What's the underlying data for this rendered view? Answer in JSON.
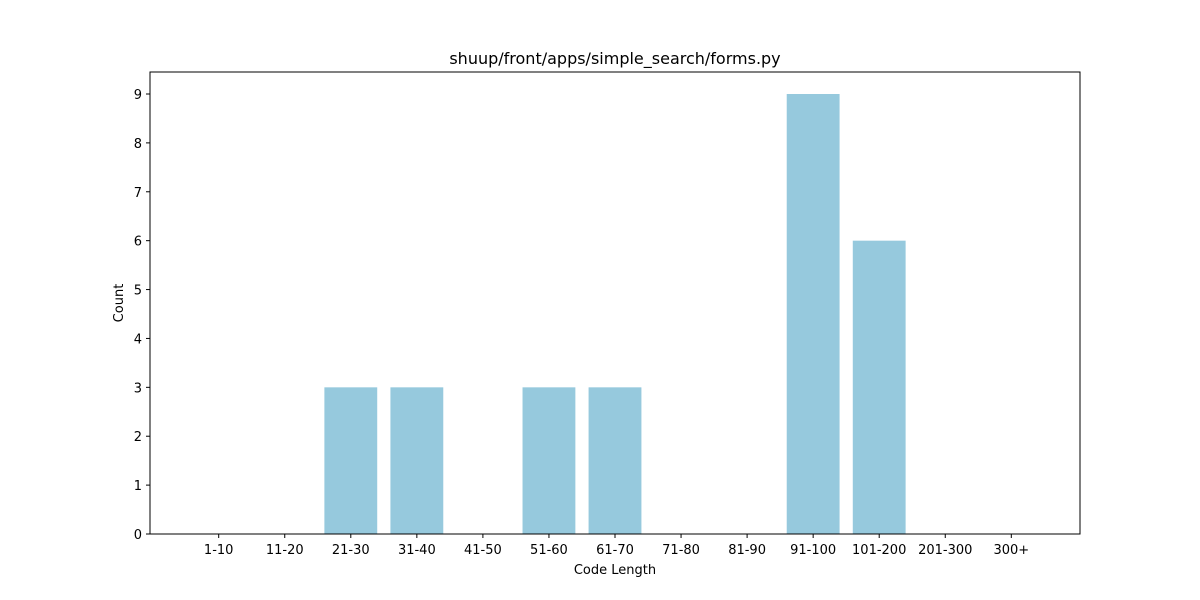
{
  "chart_data": {
    "type": "bar",
    "title": "shuup/front/apps/simple_search/forms.py",
    "xlabel": "Code Length",
    "ylabel": "Count",
    "categories": [
      "1-10",
      "11-20",
      "21-30",
      "31-40",
      "41-50",
      "51-60",
      "61-70",
      "71-80",
      "81-90",
      "91-100",
      "101-200",
      "201-300",
      "300+"
    ],
    "values": [
      0,
      0,
      3,
      3,
      0,
      3,
      3,
      0,
      0,
      9,
      6,
      0,
      0
    ],
    "ylim": [
      0,
      9.45
    ],
    "yticks": [
      "0",
      "1",
      "2",
      "3",
      "4",
      "5",
      "6",
      "7",
      "8",
      "9"
    ],
    "bar_color": "#96c9dd",
    "grid": false,
    "legend": "none"
  }
}
